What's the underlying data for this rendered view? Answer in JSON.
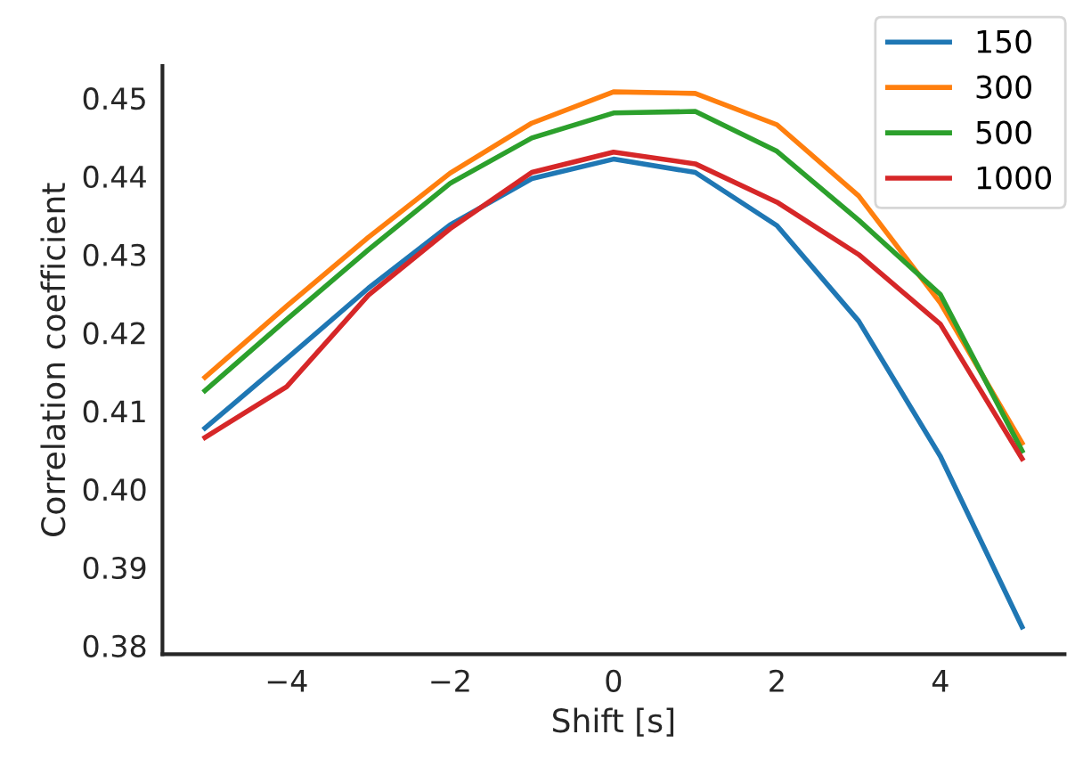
{
  "chart_data": {
    "type": "line",
    "xlabel": "Shift [s]",
    "ylabel": "Correlation coefficient",
    "x": [
      -5,
      -4,
      -3,
      -2,
      -1,
      0,
      1,
      2,
      3,
      4,
      5
    ],
    "series": [
      {
        "name": "150",
        "color": "#1f77b4",
        "values": [
          0.4078,
          0.4167,
          0.4257,
          0.4338,
          0.4397,
          0.4422,
          0.4405,
          0.4337,
          0.4215,
          0.4042,
          0.3824
        ]
      },
      {
        "name": "300",
        "color": "#ff7f0e",
        "values": [
          0.4143,
          0.4234,
          0.4322,
          0.4404,
          0.4468,
          0.4508,
          0.4506,
          0.4466,
          0.4375,
          0.4238,
          0.4059
        ]
      },
      {
        "name": "500",
        "color": "#2ca02c",
        "values": [
          0.4126,
          0.4217,
          0.4306,
          0.4391,
          0.4449,
          0.4481,
          0.4483,
          0.4432,
          0.4344,
          0.4249,
          0.4049
        ]
      },
      {
        "name": "1000",
        "color": "#d62728",
        "values": [
          0.4066,
          0.4131,
          0.4248,
          0.4333,
          0.4405,
          0.4431,
          0.4416,
          0.4367,
          0.43,
          0.4211,
          0.4039
        ]
      }
    ],
    "xlim": [
      -5.52,
      5.52
    ],
    "ylim": [
      0.3789,
      0.4541
    ],
    "xticks": [
      {
        "value": -4,
        "label": "−4"
      },
      {
        "value": -2,
        "label": "−2"
      },
      0,
      2,
      4
    ],
    "yticks": [
      {
        "value": 0.38,
        "label": "0.38"
      },
      {
        "value": 0.39,
        "label": "0.39"
      },
      {
        "value": 0.4,
        "label": "0.40"
      },
      {
        "value": 0.41,
        "label": "0.41"
      },
      {
        "value": 0.42,
        "label": "0.42"
      },
      {
        "value": 0.43,
        "label": "0.43"
      },
      {
        "value": 0.44,
        "label": "0.44"
      },
      {
        "value": 0.45,
        "label": "0.45"
      }
    ],
    "grid": false,
    "legend": "top right",
    "marker": "none",
    "line_style": "solid"
  }
}
